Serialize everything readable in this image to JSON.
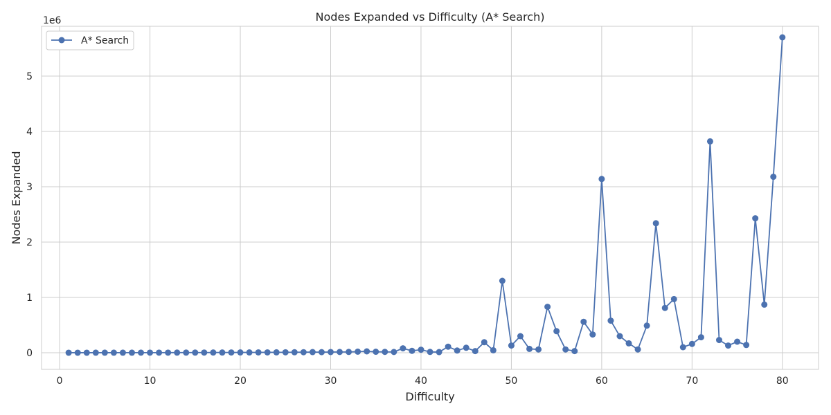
{
  "chart_data": {
    "type": "line",
    "title": "Nodes Expanded vs Difficulty (A* Search)",
    "xlabel": "Difficulty",
    "ylabel": "Nodes Expanded",
    "offset_text": "1e6",
    "xlim": [
      -2,
      84
    ],
    "ylim": [
      -300000,
      5900000
    ],
    "x_ticks": [
      0,
      10,
      20,
      30,
      40,
      50,
      60,
      70,
      80
    ],
    "y_ticks": [
      0,
      1000000,
      2000000,
      3000000,
      4000000,
      5000000
    ],
    "y_tick_labels": [
      "0",
      "1",
      "2",
      "3",
      "4",
      "5"
    ],
    "grid": true,
    "legend_position": "top-left",
    "line_color": "#4c72b0",
    "series": [
      {
        "name": "A* Search",
        "x": [
          1,
          2,
          3,
          4,
          5,
          6,
          7,
          8,
          9,
          10,
          11,
          12,
          13,
          14,
          15,
          16,
          17,
          18,
          19,
          20,
          21,
          22,
          23,
          24,
          25,
          26,
          27,
          28,
          29,
          30,
          31,
          32,
          33,
          34,
          35,
          36,
          37,
          38,
          39,
          40,
          41,
          42,
          43,
          44,
          45,
          46,
          47,
          48,
          49,
          50,
          51,
          52,
          53,
          54,
          55,
          56,
          57,
          58,
          59,
          60,
          61,
          62,
          63,
          64,
          65,
          66,
          67,
          68,
          69,
          70,
          71,
          72,
          73,
          74,
          75,
          76,
          77,
          78,
          79,
          80
        ],
        "y": [
          500,
          600,
          700,
          800,
          900,
          1000,
          1200,
          1400,
          1600,
          1800,
          2000,
          2200,
          2500,
          2800,
          3000,
          3500,
          4000,
          4500,
          5000,
          5500,
          6000,
          6500,
          7000,
          7500,
          8000,
          9000,
          10000,
          12000,
          11000,
          13000,
          14000,
          15000,
          20000,
          25000,
          18000,
          16000,
          14000,
          80000,
          35000,
          55000,
          15000,
          12000,
          110000,
          40000,
          90000,
          30000,
          190000,
          45000,
          1300000,
          130000,
          300000,
          70000,
          60000,
          830000,
          390000,
          60000,
          30000,
          560000,
          330000,
          3140000,
          580000,
          300000,
          170000,
          60000,
          490000,
          2340000,
          810000,
          970000,
          100000,
          160000,
          280000,
          3820000,
          230000,
          130000,
          200000,
          140000,
          2430000,
          870000,
          3180000,
          5700000
        ]
      }
    ]
  }
}
